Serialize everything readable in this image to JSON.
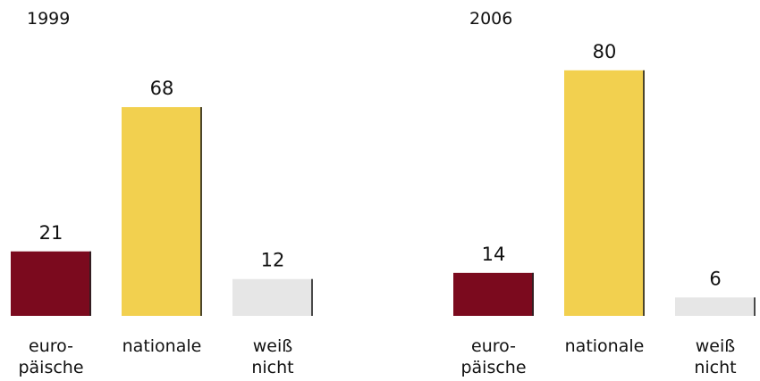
{
  "chart_data": [
    {
      "type": "bar",
      "title": "1999",
      "categories": [
        [
          "euro-",
          "päische"
        ],
        [
          "nationale"
        ],
        [
          "weiß",
          "nicht"
        ]
      ],
      "values": [
        21,
        68,
        12
      ],
      "colors": [
        "#7b0a1e",
        "#f2d04f",
        "#e6e6e6"
      ]
    },
    {
      "type": "bar",
      "title": "2006",
      "categories": [
        [
          "euro-",
          "päische"
        ],
        [
          "nationale"
        ],
        [
          "weiß",
          "nicht"
        ]
      ],
      "values": [
        14,
        80,
        6
      ],
      "colors": [
        "#7b0a1e",
        "#f2d04f",
        "#e6e6e6"
      ]
    }
  ]
}
